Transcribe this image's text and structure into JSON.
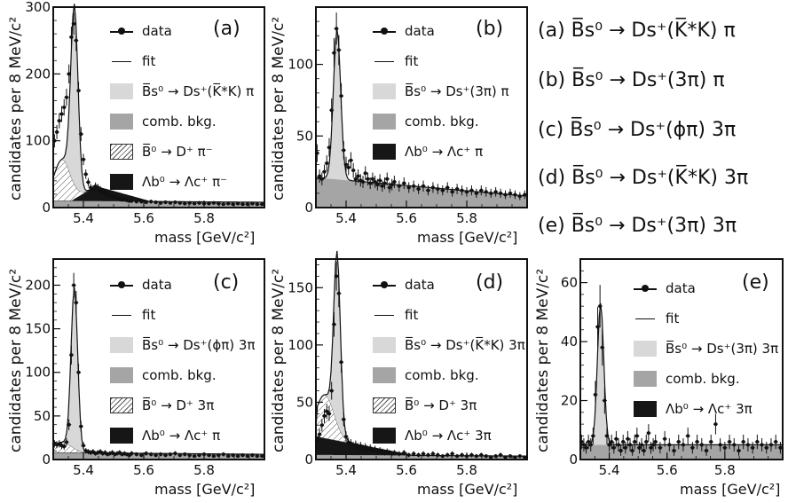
{
  "panels": [
    {
      "id": "a",
      "label": "(a)",
      "ylabel": "candidates per 8 MeV/c²",
      "xlabel": "mass [GeV/c²]",
      "legend": [
        "data",
        "fit",
        "B̅s⁰ → Ds⁺(K̅*K) π",
        "comb. bkg.",
        "B̅⁰ → D⁺ π⁻",
        "Λb⁰ → Λc⁺ π⁻"
      ],
      "yticks": [
        "0",
        "100",
        "200",
        "300"
      ],
      "xticks": [
        "5.4",
        "5.6",
        "5.8"
      ]
    },
    {
      "id": "b",
      "label": "(b)",
      "ylabel": "candidates per 8 MeV/c²",
      "xlabel": "mass [GeV/c²]",
      "legend": [
        "data",
        "fit",
        "B̅s⁰ → Ds⁺(3π) π",
        "comb. bkg.",
        "Λb⁰ → Λc⁺ π"
      ],
      "yticks": [
        "0",
        "50",
        "100"
      ],
      "xticks": [
        "5.4",
        "5.6",
        "5.8"
      ]
    },
    {
      "id": "c",
      "label": "(c)",
      "ylabel": "candidates per 8 MeV/c²",
      "xlabel": "mass [GeV/c²]",
      "legend": [
        "data",
        "fit",
        "B̅s⁰ → Ds⁺(ϕπ) 3π",
        "comb. bkg.",
        "B̅⁰ → D⁺ 3π",
        "Λb⁰ → Λc⁺ π"
      ],
      "yticks": [
        "0",
        "50",
        "100",
        "150",
        "200"
      ],
      "xticks": [
        "5.4",
        "5.6",
        "5.8"
      ]
    },
    {
      "id": "d",
      "label": "(d)",
      "ylabel": "candidates per 8 MeV/c²",
      "xlabel": "mass [GeV/c²]",
      "legend": [
        "data",
        "fit",
        "B̅s⁰ → Ds⁺(K̅*K) 3π",
        "comb. bkg.",
        "B̅⁰ → D⁺ 3π",
        "Λb⁰ → Λc⁺ 3π"
      ],
      "yticks": [
        "0",
        "50",
        "100",
        "150"
      ],
      "xticks": [
        "5.4",
        "5.6",
        "5.8"
      ]
    },
    {
      "id": "e",
      "label": "(e)",
      "ylabel": "candidates per 8 MeV/c²",
      "xlabel": "mass [GeV/c²]",
      "legend": [
        "data",
        "fit",
        "B̅s⁰ → Ds⁺(3π) 3π",
        "comb. bkg.",
        "Λb⁰ → Λc⁺ 3π"
      ],
      "yticks": [
        "0",
        "20",
        "40",
        "60"
      ],
      "xticks": [
        "5.4",
        "5.6",
        "5.8"
      ]
    }
  ],
  "decay_list": [
    "(a)  B̅s⁰ → Ds⁺(K̅*K) π",
    "(b)  B̅s⁰ → Ds⁺(3π) π",
    "(c)  B̅s⁰ → Ds⁺(ϕπ) 3π",
    "(d)  B̅s⁰ → Ds⁺(K̅*K) 3π",
    "(e)  B̅s⁰ → Ds⁺(3π) 3π"
  ],
  "colors": {
    "signal": "#d8d8d8",
    "comb": "#a5a5a5",
    "lambda": "#161616",
    "hatch": "#555555",
    "frame": "#111111"
  },
  "chart_data": [
    {
      "type": "line",
      "panel": "a",
      "xlim": [
        5.3,
        6.0
      ],
      "ylim": [
        0,
        300
      ],
      "peak": 5.37,
      "width": 0.012,
      "signal_peak": 270,
      "comb_level": [
        10,
        8
      ],
      "misid_B0": {
        "center": 5.33,
        "width": 0.028,
        "height": 62
      },
      "lambda_b": {
        "start": 5.36,
        "peak_x": 5.44,
        "height": 22,
        "end": 5.62
      },
      "data_points": [
        [
          5.304,
          100
        ],
        [
          5.312,
          113
        ],
        [
          5.32,
          130
        ],
        [
          5.328,
          140
        ],
        [
          5.336,
          150
        ],
        [
          5.344,
          165
        ],
        [
          5.352,
          200
        ],
        [
          5.36,
          255
        ],
        [
          5.368,
          275
        ],
        [
          5.376,
          250
        ],
        [
          5.384,
          175
        ],
        [
          5.392,
          110
        ],
        [
          5.4,
          72
        ],
        [
          5.408,
          50
        ],
        [
          5.416,
          38
        ],
        [
          5.424,
          30
        ],
        [
          5.432,
          28
        ],
        [
          5.44,
          32
        ],
        [
          5.448,
          30
        ],
        [
          5.456,
          27
        ],
        [
          5.464,
          24
        ],
        [
          5.472,
          22
        ],
        [
          5.48,
          20
        ],
        [
          5.488,
          18
        ],
        [
          5.496,
          17
        ],
        [
          5.504,
          16
        ],
        [
          5.512,
          14
        ],
        [
          5.52,
          13
        ],
        [
          5.528,
          12
        ],
        [
          5.536,
          12
        ],
        [
          5.544,
          11
        ],
        [
          5.552,
          10
        ],
        [
          5.56,
          10
        ],
        [
          5.576,
          9
        ],
        [
          5.592,
          9
        ],
        [
          5.608,
          8
        ],
        [
          5.624,
          9
        ],
        [
          5.64,
          8
        ],
        [
          5.656,
          7
        ],
        [
          5.672,
          8
        ],
        [
          5.688,
          7
        ],
        [
          5.704,
          8
        ],
        [
          5.72,
          7
        ],
        [
          5.736,
          6
        ],
        [
          5.752,
          7
        ],
        [
          5.768,
          6
        ],
        [
          5.784,
          7
        ],
        [
          5.8,
          6
        ],
        [
          5.816,
          6
        ],
        [
          5.832,
          7
        ],
        [
          5.848,
          6
        ],
        [
          5.864,
          5
        ],
        [
          5.88,
          6
        ],
        [
          5.896,
          5
        ],
        [
          5.912,
          6
        ],
        [
          5.928,
          5
        ],
        [
          5.944,
          5
        ],
        [
          5.96,
          6
        ],
        [
          5.976,
          5
        ],
        [
          5.992,
          5
        ]
      ]
    },
    {
      "type": "line",
      "panel": "b",
      "xlim": [
        5.3,
        6.0
      ],
      "ylim": [
        0,
        140
      ],
      "peak": 5.37,
      "width": 0.012,
      "signal_peak": 105,
      "comb_level": [
        21,
        8
      ],
      "lambda_b": null,
      "misid_B0": null,
      "data_points": [
        [
          5.304,
          38
        ],
        [
          5.312,
          22
        ],
        [
          5.32,
          20
        ],
        [
          5.328,
          25
        ],
        [
          5.336,
          31
        ],
        [
          5.344,
          42
        ],
        [
          5.352,
          68
        ],
        [
          5.36,
          108
        ],
        [
          5.368,
          125
        ],
        [
          5.376,
          110
        ],
        [
          5.384,
          78
        ],
        [
          5.392,
          40
        ],
        [
          5.4,
          30
        ],
        [
          5.408,
          28
        ],
        [
          5.416,
          33
        ],
        [
          5.424,
          26
        ],
        [
          5.432,
          20
        ],
        [
          5.44,
          22
        ],
        [
          5.448,
          19
        ],
        [
          5.456,
          18
        ],
        [
          5.464,
          24
        ],
        [
          5.472,
          20
        ],
        [
          5.48,
          17
        ],
        [
          5.488,
          20
        ],
        [
          5.496,
          18
        ],
        [
          5.504,
          16
        ],
        [
          5.512,
          19
        ],
        [
          5.52,
          15
        ],
        [
          5.528,
          17
        ],
        [
          5.536,
          20
        ],
        [
          5.544,
          14
        ],
        [
          5.552,
          16
        ],
        [
          5.56,
          18
        ],
        [
          5.576,
          15
        ],
        [
          5.592,
          17
        ],
        [
          5.608,
          14
        ],
        [
          5.624,
          15
        ],
        [
          5.64,
          13
        ],
        [
          5.656,
          15
        ],
        [
          5.672,
          12
        ],
        [
          5.688,
          14
        ],
        [
          5.704,
          13
        ],
        [
          5.72,
          12
        ],
        [
          5.736,
          14
        ],
        [
          5.752,
          11
        ],
        [
          5.768,
          13
        ],
        [
          5.784,
          12
        ],
        [
          5.8,
          11
        ],
        [
          5.816,
          12
        ],
        [
          5.832,
          10
        ],
        [
          5.848,
          12
        ],
        [
          5.864,
          11
        ],
        [
          5.88,
          10
        ],
        [
          5.896,
          11
        ],
        [
          5.912,
          10
        ],
        [
          5.928,
          9
        ],
        [
          5.944,
          10
        ],
        [
          5.96,
          9
        ],
        [
          5.976,
          8
        ],
        [
          5.992,
          9
        ]
      ]
    },
    {
      "type": "line",
      "panel": "c",
      "xlim": [
        5.3,
        6.0
      ],
      "ylim": [
        0,
        230
      ],
      "peak": 5.37,
      "width": 0.011,
      "signal_peak": 185,
      "comb_level": [
        8,
        6
      ],
      "misid_B0": {
        "center": 5.33,
        "width": 0.03,
        "height": 12
      },
      "lambda_b": null,
      "data_points": [
        [
          5.304,
          18
        ],
        [
          5.312,
          17
        ],
        [
          5.32,
          18
        ],
        [
          5.328,
          16
        ],
        [
          5.336,
          15
        ],
        [
          5.344,
          20
        ],
        [
          5.352,
          40
        ],
        [
          5.36,
          120
        ],
        [
          5.368,
          200
        ],
        [
          5.376,
          180
        ],
        [
          5.384,
          100
        ],
        [
          5.392,
          38
        ],
        [
          5.4,
          16
        ],
        [
          5.408,
          10
        ],
        [
          5.416,
          9
        ],
        [
          5.424,
          8
        ],
        [
          5.432,
          9
        ],
        [
          5.44,
          7
        ],
        [
          5.448,
          8
        ],
        [
          5.456,
          9
        ],
        [
          5.464,
          7
        ],
        [
          5.472,
          8
        ],
        [
          5.48,
          6
        ],
        [
          5.488,
          7
        ],
        [
          5.496,
          8
        ],
        [
          5.504,
          6
        ],
        [
          5.512,
          7
        ],
        [
          5.52,
          8
        ],
        [
          5.528,
          6
        ],
        [
          5.536,
          7
        ],
        [
          5.544,
          6
        ],
        [
          5.552,
          5
        ],
        [
          5.56,
          7
        ],
        [
          5.576,
          6
        ],
        [
          5.592,
          5
        ],
        [
          5.608,
          7
        ],
        [
          5.624,
          6
        ],
        [
          5.64,
          5
        ],
        [
          5.656,
          6
        ],
        [
          5.672,
          5
        ],
        [
          5.688,
          6
        ],
        [
          5.704,
          7
        ],
        [
          5.72,
          5
        ],
        [
          5.736,
          6
        ],
        [
          5.752,
          5
        ],
        [
          5.768,
          4
        ],
        [
          5.784,
          5
        ],
        [
          5.8,
          6
        ],
        [
          5.816,
          5
        ],
        [
          5.832,
          4
        ],
        [
          5.848,
          5
        ],
        [
          5.864,
          6
        ],
        [
          5.88,
          4
        ],
        [
          5.896,
          5
        ],
        [
          5.912,
          4
        ],
        [
          5.928,
          5
        ],
        [
          5.944,
          4
        ],
        [
          5.96,
          5
        ],
        [
          5.976,
          4
        ],
        [
          5.992,
          4
        ]
      ]
    },
    {
      "type": "line",
      "panel": "d",
      "xlim": [
        5.3,
        6.0
      ],
      "ylim": [
        0,
        175
      ],
      "peak": 5.37,
      "width": 0.011,
      "signal_peak": 150,
      "comb_level": [
        4,
        3
      ],
      "misid_B0": {
        "center": 5.33,
        "width": 0.03,
        "height": 38
      },
      "lambda_b": {
        "start": 5.3,
        "peak_x": 5.3,
        "height": 16,
        "end": 5.62
      },
      "data_points": [
        [
          5.304,
          16
        ],
        [
          5.312,
          22
        ],
        [
          5.32,
          30
        ],
        [
          5.328,
          38
        ],
        [
          5.336,
          42
        ],
        [
          5.344,
          40
        ],
        [
          5.352,
          60
        ],
        [
          5.36,
          118
        ],
        [
          5.368,
          160
        ],
        [
          5.376,
          145
        ],
        [
          5.384,
          85
        ],
        [
          5.392,
          35
        ],
        [
          5.4,
          20
        ],
        [
          5.408,
          15
        ],
        [
          5.416,
          14
        ],
        [
          5.424,
          12
        ],
        [
          5.432,
          13
        ],
        [
          5.44,
          11
        ],
        [
          5.448,
          12
        ],
        [
          5.456,
          10
        ],
        [
          5.464,
          11
        ],
        [
          5.472,
          9
        ],
        [
          5.48,
          10
        ],
        [
          5.488,
          8
        ],
        [
          5.496,
          9
        ],
        [
          5.504,
          7
        ],
        [
          5.512,
          8
        ],
        [
          5.52,
          7
        ],
        [
          5.528,
          6
        ],
        [
          5.536,
          7
        ],
        [
          5.544,
          6
        ],
        [
          5.552,
          5
        ],
        [
          5.56,
          6
        ],
        [
          5.576,
          5
        ],
        [
          5.592,
          6
        ],
        [
          5.608,
          4
        ],
        [
          5.624,
          5
        ],
        [
          5.64,
          4
        ],
        [
          5.656,
          5
        ],
        [
          5.672,
          4
        ],
        [
          5.688,
          5
        ],
        [
          5.704,
          4
        ],
        [
          5.72,
          3
        ],
        [
          5.736,
          4
        ],
        [
          5.752,
          5
        ],
        [
          5.768,
          3
        ],
        [
          5.784,
          4
        ],
        [
          5.8,
          3
        ],
        [
          5.816,
          4
        ],
        [
          5.832,
          3
        ],
        [
          5.848,
          4
        ],
        [
          5.864,
          3
        ],
        [
          5.88,
          2
        ],
        [
          5.896,
          3
        ],
        [
          5.912,
          4
        ],
        [
          5.928,
          2
        ],
        [
          5.944,
          3
        ],
        [
          5.96,
          2
        ],
        [
          5.976,
          3
        ],
        [
          5.992,
          2
        ]
      ]
    },
    {
      "type": "line",
      "panel": "e",
      "xlim": [
        5.3,
        6.0
      ],
      "ylim": [
        0,
        68
      ],
      "peak": 5.37,
      "width": 0.011,
      "signal_peak": 48,
      "comb_level": [
        5,
        5
      ],
      "misid_B0": null,
      "lambda_b": null,
      "data_points": [
        [
          5.304,
          6
        ],
        [
          5.312,
          5
        ],
        [
          5.32,
          4
        ],
        [
          5.328,
          6
        ],
        [
          5.336,
          5
        ],
        [
          5.344,
          8
        ],
        [
          5.352,
          22
        ],
        [
          5.36,
          45
        ],
        [
          5.368,
          52
        ],
        [
          5.376,
          38
        ],
        [
          5.384,
          20
        ],
        [
          5.392,
          8
        ],
        [
          5.4,
          5
        ],
        [
          5.408,
          6
        ],
        [
          5.416,
          4
        ],
        [
          5.424,
          7
        ],
        [
          5.432,
          5
        ],
        [
          5.44,
          3
        ],
        [
          5.448,
          6
        ],
        [
          5.456,
          4
        ],
        [
          5.464,
          7
        ],
        [
          5.472,
          5
        ],
        [
          5.48,
          3
        ],
        [
          5.488,
          6
        ],
        [
          5.496,
          8
        ],
        [
          5.504,
          4
        ],
        [
          5.512,
          5
        ],
        [
          5.52,
          3
        ],
        [
          5.528,
          6
        ],
        [
          5.536,
          9
        ],
        [
          5.544,
          4
        ],
        [
          5.552,
          5
        ],
        [
          5.56,
          6
        ],
        [
          5.576,
          4
        ],
        [
          5.592,
          7
        ],
        [
          5.608,
          5
        ],
        [
          5.624,
          3
        ],
        [
          5.64,
          6
        ],
        [
          5.656,
          5
        ],
        [
          5.672,
          8
        ],
        [
          5.688,
          4
        ],
        [
          5.704,
          6
        ],
        [
          5.72,
          5
        ],
        [
          5.736,
          3
        ],
        [
          5.752,
          6
        ],
        [
          5.768,
          12
        ],
        [
          5.784,
          5
        ],
        [
          5.8,
          4
        ],
        [
          5.816,
          6
        ],
        [
          5.832,
          5
        ],
        [
          5.848,
          3
        ],
        [
          5.864,
          6
        ],
        [
          5.88,
          5
        ],
        [
          5.896,
          4
        ],
        [
          5.912,
          6
        ],
        [
          5.928,
          5
        ],
        [
          5.944,
          4
        ],
        [
          5.96,
          5
        ],
        [
          5.976,
          6
        ],
        [
          5.992,
          4
        ]
      ]
    }
  ]
}
